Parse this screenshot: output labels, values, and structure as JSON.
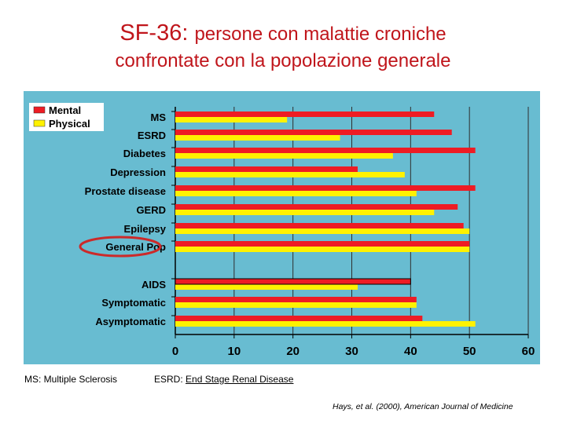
{
  "title": {
    "prefix": "SF-36:",
    "line1_rest": "persone con malattie croniche",
    "line2": "confrontate con la popolazione generale"
  },
  "colors": {
    "plot_bg": "#68bcd1",
    "mental": "#ee1c24",
    "physical": "#fff200",
    "title": "#c0151b",
    "highlight": "#cc2a2a"
  },
  "chart_data": {
    "type": "bar",
    "orientation": "horizontal",
    "categories": [
      "MS",
      "ESRD",
      "Diabetes",
      "Depression",
      "Prostate disease",
      "GERD",
      "Epilepsy",
      "General Pop",
      "AIDS",
      "Symptomatic",
      "Asymptomatic"
    ],
    "series": [
      {
        "name": "Mental",
        "values": [
          44,
          47,
          51,
          31,
          51,
          48,
          49,
          50,
          40,
          41,
          42
        ]
      },
      {
        "name": "Physical",
        "values": [
          19,
          28,
          37,
          39,
          41,
          44,
          50,
          50,
          31,
          41,
          51
        ]
      }
    ],
    "xlim": [
      0,
      60
    ],
    "xticks": [
      "0",
      "10",
      "20",
      "30",
      "40",
      "50",
      "60"
    ],
    "legend": [
      "Mental",
      "Physical"
    ],
    "legend_position": "top-left",
    "highlighted_category": "General Pop"
  },
  "footnotes": {
    "ms": "MS: Multiple Sclerosis",
    "esrd_prefix": "ESRD:",
    "esrd_full": "End Stage Renal Disease",
    "citation": "Hays, et al. (2000), American Journal of Medicine"
  }
}
